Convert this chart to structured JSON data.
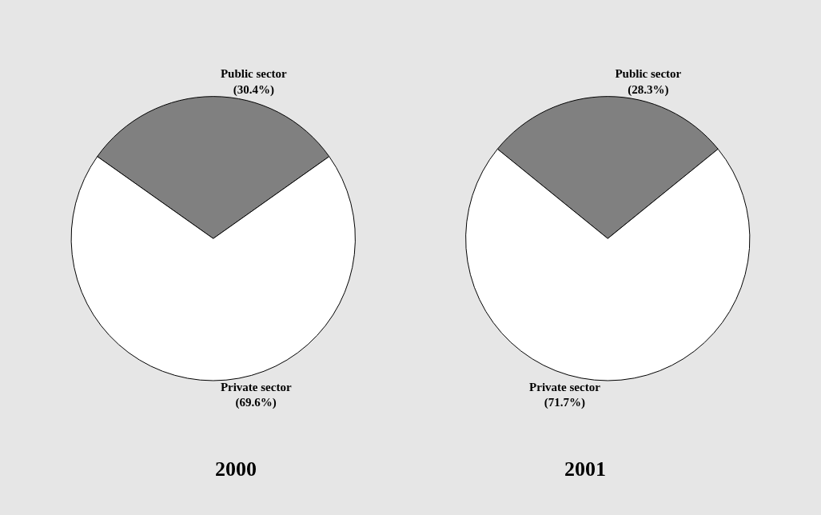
{
  "chart_data": [
    {
      "type": "pie",
      "title": "2000",
      "categories": [
        "Public sector",
        "Private sector"
      ],
      "values": [
        30.4,
        69.6
      ],
      "colors": [
        "#808080",
        "#ffffff"
      ],
      "value_labels": [
        "(30.4%)",
        "(69.6%)"
      ]
    },
    {
      "type": "pie",
      "title": "2001",
      "categories": [
        "Public sector",
        "Private sector"
      ],
      "values": [
        28.3,
        71.7
      ],
      "colors": [
        "#808080",
        "#ffffff"
      ],
      "value_labels": [
        "(28.3%)",
        "(71.7%)"
      ]
    }
  ]
}
